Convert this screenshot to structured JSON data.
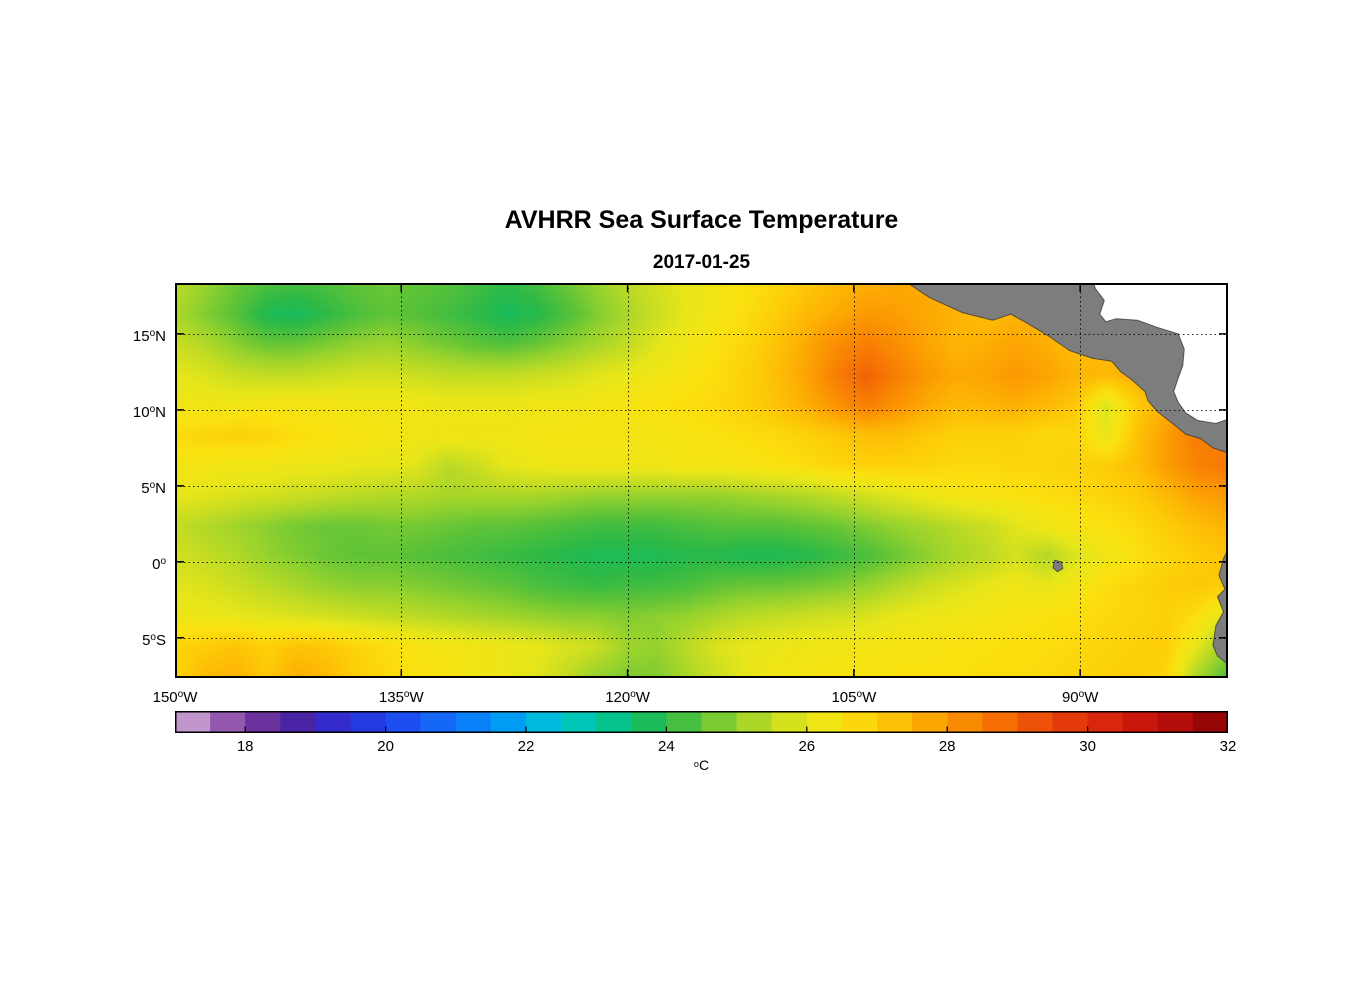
{
  "title": "AVHRR Sea Surface Temperature",
  "subtitle": "2017-01-25",
  "axes": {
    "x_ticks": [
      {
        "num": "150",
        "sup": "o",
        "hem": "W",
        "lon": -150
      },
      {
        "num": "135",
        "sup": "o",
        "hem": "W",
        "lon": -135
      },
      {
        "num": "120",
        "sup": "o",
        "hem": "W",
        "lon": -120
      },
      {
        "num": "105",
        "sup": "o",
        "hem": "W",
        "lon": -105
      },
      {
        "num": "90",
        "sup": "o",
        "hem": "W",
        "lon": -90
      }
    ],
    "y_ticks": [
      {
        "num": "15",
        "sup": "o",
        "hem": "N",
        "lat": 15
      },
      {
        "num": "10",
        "sup": "o",
        "hem": "N",
        "lat": 10
      },
      {
        "num": "5",
        "sup": "o",
        "hem": "N",
        "lat": 5
      },
      {
        "num": "0",
        "sup": "o",
        "hem": "",
        "lat": 0
      },
      {
        "num": "5",
        "sup": "o",
        "hem": "S",
        "lat": -5
      }
    ]
  },
  "colorbar": {
    "range": [
      17,
      32
    ],
    "segment_step": 0.5,
    "ticks": [
      {
        "label": "18",
        "value": 18
      },
      {
        "label": "20",
        "value": 20
      },
      {
        "label": "22",
        "value": 22
      },
      {
        "label": "24",
        "value": 24
      },
      {
        "label": "26",
        "value": 26
      },
      {
        "label": "28",
        "value": 28
      },
      {
        "label": "30",
        "value": 30
      },
      {
        "label": "32",
        "value": 32
      }
    ],
    "unit_sup": "o",
    "unit_letter": "C"
  },
  "chart_data": {
    "type": "heatmap",
    "title": "AVHRR Sea Surface Temperature",
    "subtitle": "2017-01-25",
    "units": "degC",
    "lon_range": [
      -150,
      -80.2
    ],
    "lat_range": [
      -7.65,
      18.35
    ],
    "value_range": [
      17,
      32
    ],
    "land_color": "#7d7d7d",
    "nodata_color": "#ffffff",
    "grid": {
      "lons": [
        -150,
        -148,
        -146,
        -144,
        -142,
        -140,
        -138,
        -136,
        -134,
        -132,
        -130,
        -128,
        -126,
        -124,
        -122,
        -120,
        -118,
        -116,
        -114,
        -112,
        -110,
        -108,
        -106,
        -104,
        -102,
        -100,
        -98,
        -96,
        -94,
        -92,
        -90,
        -88,
        -86,
        -84,
        -82,
        -80
      ],
      "lats": [
        18,
        16,
        14,
        12,
        10,
        8,
        6,
        4,
        2,
        0,
        -2,
        -4,
        -6,
        -8
      ],
      "sst": [
        [
          25.4,
          25.0,
          24.6,
          24.3,
          24.2,
          24.3,
          24.5,
          24.6,
          24.5,
          24.4,
          24.2,
          24.0,
          24.2,
          24.6,
          25.0,
          25.4,
          25.7,
          26.0,
          26.3,
          26.5,
          26.8,
          27.1,
          27.4,
          27.6,
          27.7,
          27.7,
          27.6,
          27.5,
          27.4,
          27.3,
          27.2,
          27.2,
          27.2,
          27.2,
          27.2,
          27.2
        ],
        [
          25.2,
          24.8,
          24.4,
          23.8,
          23.7,
          24.0,
          24.3,
          24.5,
          24.4,
          24.2,
          24.0,
          23.7,
          23.9,
          24.3,
          24.8,
          25.2,
          25.6,
          26.0,
          26.3,
          26.6,
          27.0,
          27.4,
          27.7,
          28.0,
          27.9,
          27.7,
          27.5,
          27.3,
          27.5,
          27.4,
          27.3,
          27.3,
          27.4,
          27.4,
          27.4,
          27.4
        ],
        [
          25.6,
          25.3,
          24.9,
          24.6,
          24.6,
          24.8,
          25.0,
          25.1,
          24.9,
          24.7,
          24.5,
          24.4,
          24.6,
          24.9,
          25.2,
          25.5,
          25.9,
          26.2,
          26.5,
          26.8,
          27.2,
          27.7,
          28.2,
          28.5,
          28.2,
          27.8,
          27.5,
          27.6,
          27.8,
          27.6,
          27.3,
          27.4,
          27.6,
          27.6,
          27.6,
          27.6
        ],
        [
          26.0,
          25.8,
          25.6,
          25.5,
          25.5,
          25.6,
          25.7,
          25.7,
          25.6,
          25.5,
          25.5,
          25.5,
          25.6,
          25.7,
          25.9,
          26.0,
          26.2,
          26.4,
          26.6,
          26.9,
          27.3,
          27.8,
          28.5,
          29.0,
          28.5,
          28.0,
          27.7,
          27.8,
          28.0,
          27.8,
          27.5,
          27.4,
          27.6,
          27.7,
          27.7,
          27.7
        ],
        [
          26.2,
          26.2,
          26.2,
          26.3,
          26.3,
          26.3,
          26.2,
          26.2,
          26.2,
          26.1,
          26.1,
          26.1,
          26.2,
          26.2,
          26.3,
          26.4,
          26.5,
          26.6,
          26.7,
          26.9,
          27.2,
          27.6,
          28.1,
          28.5,
          28.1,
          27.7,
          27.4,
          27.5,
          27.6,
          27.4,
          27.1,
          25.8,
          27.0,
          27.6,
          27.9,
          27.9
        ],
        [
          26.7,
          26.8,
          26.9,
          26.8,
          26.6,
          26.5,
          26.4,
          26.3,
          26.2,
          26.2,
          26.2,
          26.2,
          26.3,
          26.3,
          26.3,
          26.3,
          26.3,
          26.4,
          26.5,
          26.6,
          26.7,
          26.9,
          27.1,
          27.3,
          27.3,
          27.1,
          26.9,
          26.9,
          26.9,
          26.7,
          26.8,
          26.0,
          27.2,
          27.9,
          28.5,
          28.4
        ],
        [
          26.3,
          26.3,
          26.2,
          26.2,
          26.1,
          26.1,
          26.0,
          26.0,
          25.9,
          25.4,
          25.6,
          26.0,
          26.1,
          26.2,
          26.2,
          26.2,
          26.2,
          26.3,
          26.3,
          26.4,
          26.5,
          26.6,
          26.8,
          26.9,
          26.9,
          26.8,
          26.7,
          26.7,
          26.8,
          26.8,
          26.9,
          27.0,
          27.3,
          27.9,
          28.4,
          28.6
        ],
        [
          26.0,
          25.9,
          25.8,
          25.7,
          25.6,
          25.5,
          25.4,
          25.3,
          25.3,
          25.2,
          25.2,
          25.2,
          25.2,
          25.1,
          25.0,
          25.0,
          25.0,
          25.0,
          25.0,
          25.1,
          25.2,
          25.3,
          25.5,
          25.7,
          25.9,
          26.1,
          26.3,
          26.4,
          26.5,
          26.6,
          26.7,
          26.8,
          27.0,
          27.4,
          27.8,
          28.0
        ],
        [
          25.5,
          25.3,
          25.1,
          24.9,
          24.7,
          24.6,
          24.6,
          24.7,
          24.7,
          24.6,
          24.5,
          24.5,
          24.4,
          24.3,
          24.2,
          24.2,
          24.2,
          24.3,
          24.4,
          24.4,
          24.4,
          24.5,
          24.6,
          24.8,
          25.0,
          25.2,
          25.4,
          25.6,
          25.9,
          26.2,
          26.4,
          26.5,
          26.7,
          27.0,
          27.3,
          27.5
        ],
        [
          25.7,
          25.5,
          25.3,
          25.0,
          24.8,
          24.6,
          24.5,
          24.5,
          24.4,
          24.3,
          24.2,
          24.1,
          24.0,
          23.9,
          23.8,
          23.8,
          23.8,
          23.9,
          23.9,
          23.8,
          23.8,
          23.9,
          24.1,
          24.3,
          24.6,
          24.9,
          25.2,
          25.4,
          25.7,
          25.3,
          25.8,
          26.2,
          26.5,
          26.8,
          27.0,
          27.2
        ],
        [
          25.9,
          25.8,
          25.6,
          25.4,
          25.2,
          25.0,
          24.9,
          24.9,
          24.8,
          24.7,
          24.6,
          24.5,
          24.3,
          24.2,
          24.1,
          24.2,
          24.2,
          24.3,
          24.5,
          24.6,
          24.6,
          24.7,
          24.8,
          25.0,
          25.3,
          25.6,
          25.8,
          26.0,
          26.2,
          26.0,
          26.3,
          26.6,
          26.8,
          27.0,
          27.1,
          27.0
        ],
        [
          26.2,
          26.1,
          26.0,
          25.9,
          25.8,
          25.7,
          25.6,
          25.5,
          25.4,
          25.3,
          25.2,
          25.1,
          25.0,
          24.9,
          24.9,
          24.8,
          24.9,
          25.0,
          25.2,
          25.4,
          25.5,
          25.6,
          25.7,
          25.8,
          26.0,
          26.1,
          26.2,
          26.3,
          26.4,
          26.5,
          26.6,
          26.7,
          26.8,
          26.9,
          26.6,
          25.8
        ],
        [
          26.8,
          27.0,
          27.2,
          26.9,
          27.2,
          27.1,
          26.8,
          26.6,
          26.4,
          26.3,
          26.2,
          26.1,
          26.0,
          25.8,
          25.6,
          25.1,
          25.0,
          25.4,
          25.8,
          26.0,
          26.1,
          26.2,
          26.2,
          26.3,
          26.4,
          26.4,
          26.5,
          26.5,
          26.6,
          26.6,
          26.7,
          26.8,
          26.9,
          27.0,
          26.0,
          25.0
        ],
        [
          26.9,
          27.4,
          27.5,
          27.1,
          27.6,
          27.4,
          27.0,
          26.7,
          26.5,
          26.4,
          26.2,
          26.1,
          25.9,
          25.5,
          25.0,
          24.8,
          24.8,
          25.2,
          25.6,
          26.0,
          26.2,
          26.3,
          26.4,
          26.4,
          26.5,
          26.5,
          26.5,
          26.6,
          26.6,
          26.7,
          26.8,
          26.9,
          27.0,
          26.8,
          25.2,
          24.4
        ]
      ]
    },
    "colormap_stops": [
      [
        17.0,
        216,
        186,
        221
      ],
      [
        17.6,
        160,
        100,
        180
      ],
      [
        18.2,
        110,
        50,
        155
      ],
      [
        18.8,
        70,
        35,
        165
      ],
      [
        19.4,
        45,
        45,
        215
      ],
      [
        20.2,
        30,
        75,
        240
      ],
      [
        21.0,
        15,
        115,
        250
      ],
      [
        21.8,
        0,
        160,
        245
      ],
      [
        22.4,
        0,
        195,
        215
      ],
      [
        23.0,
        0,
        200,
        165
      ],
      [
        23.5,
        10,
        190,
        110
      ],
      [
        24.0,
        45,
        185,
        70
      ],
      [
        24.5,
        95,
        195,
        55
      ],
      [
        25.0,
        150,
        210,
        45
      ],
      [
        25.5,
        195,
        220,
        35
      ],
      [
        26.0,
        232,
        230,
        25
      ],
      [
        26.5,
        250,
        225,
        15
      ],
      [
        27.0,
        253,
        205,
        8
      ],
      [
        27.5,
        253,
        180,
        4
      ],
      [
        28.0,
        251,
        152,
        2
      ],
      [
        28.6,
        247,
        120,
        4
      ],
      [
        29.2,
        238,
        85,
        8
      ],
      [
        29.9,
        225,
        50,
        12
      ],
      [
        30.6,
        208,
        26,
        13
      ],
      [
        31.3,
        178,
        12,
        10
      ],
      [
        32.0,
        135,
        2,
        6
      ]
    ],
    "land_polygons": [
      {
        "name": "central-america",
        "pts": [
          [
            -101.8,
            18.6
          ],
          [
            -100.0,
            17.4
          ],
          [
            -97.8,
            16.4
          ],
          [
            -95.8,
            15.9
          ],
          [
            -94.6,
            16.3
          ],
          [
            -93.5,
            15.7
          ],
          [
            -92.0,
            14.8
          ],
          [
            -90.7,
            13.9
          ],
          [
            -89.2,
            13.4
          ],
          [
            -87.9,
            13.2
          ],
          [
            -87.3,
            12.5
          ],
          [
            -86.6,
            12.0
          ],
          [
            -85.7,
            11.2
          ],
          [
            -85.5,
            10.6
          ],
          [
            -84.9,
            9.9
          ],
          [
            -84.0,
            9.2
          ],
          [
            -83.0,
            8.4
          ],
          [
            -82.0,
            8.1
          ],
          [
            -81.2,
            7.5
          ],
          [
            -80.3,
            7.2
          ],
          [
            -79.7,
            7.6
          ],
          [
            -79.5,
            8.1
          ],
          [
            -78.9,
            8.5
          ],
          [
            -78.9,
            9.7
          ],
          [
            -79.9,
            9.5
          ],
          [
            -81.0,
            9.1
          ],
          [
            -82.2,
            9.3
          ],
          [
            -83.0,
            9.8
          ],
          [
            -83.5,
            10.5
          ],
          [
            -83.8,
            11.2
          ],
          [
            -83.5,
            12.1
          ],
          [
            -83.2,
            12.9
          ],
          [
            -83.1,
            14.0
          ],
          [
            -83.5,
            15.0
          ],
          [
            -84.8,
            15.4
          ],
          [
            -86.2,
            15.9
          ],
          [
            -87.6,
            16.0
          ],
          [
            -88.3,
            15.8
          ],
          [
            -88.7,
            16.3
          ],
          [
            -88.4,
            17.2
          ],
          [
            -89.0,
            18.0
          ],
          [
            -89.2,
            18.6
          ]
        ]
      },
      {
        "name": "south-america",
        "pts": [
          [
            -78.9,
            1.4
          ],
          [
            -80.1,
            1.0
          ],
          [
            -80.5,
            0.2
          ],
          [
            -80.8,
            -0.9
          ],
          [
            -80.4,
            -1.8
          ],
          [
            -80.9,
            -2.3
          ],
          [
            -80.5,
            -3.3
          ],
          [
            -81.0,
            -4.2
          ],
          [
            -81.2,
            -5.5
          ],
          [
            -80.9,
            -6.2
          ],
          [
            -80.0,
            -6.9
          ],
          [
            -79.4,
            -7.8
          ],
          [
            -78.0,
            -7.8
          ],
          [
            -78.0,
            1.4
          ]
        ]
      },
      {
        "name": "galapagos",
        "pts": [
          [
            -91.7,
            0.1
          ],
          [
            -91.25,
            0.0
          ],
          [
            -91.15,
            -0.45
          ],
          [
            -91.5,
            -0.65
          ],
          [
            -91.8,
            -0.4
          ]
        ]
      }
    ],
    "nodata_polygons": [
      {
        "name": "caribbean",
        "pts": [
          [
            -89.2,
            18.6
          ],
          [
            -89.0,
            18.0
          ],
          [
            -88.4,
            17.2
          ],
          [
            -88.7,
            16.3
          ],
          [
            -88.3,
            15.8
          ],
          [
            -87.6,
            16.0
          ],
          [
            -86.2,
            15.9
          ],
          [
            -84.8,
            15.4
          ],
          [
            -83.5,
            15.0
          ],
          [
            -83.1,
            14.0
          ],
          [
            -83.2,
            12.9
          ],
          [
            -83.5,
            12.1
          ],
          [
            -83.8,
            11.2
          ],
          [
            -83.5,
            10.5
          ],
          [
            -83.0,
            9.8
          ],
          [
            -82.2,
            9.3
          ],
          [
            -81.0,
            9.1
          ],
          [
            -79.9,
            9.5
          ],
          [
            -78.9,
            9.7
          ],
          [
            -75.0,
            9.7
          ],
          [
            -75.0,
            18.6
          ]
        ]
      }
    ]
  }
}
